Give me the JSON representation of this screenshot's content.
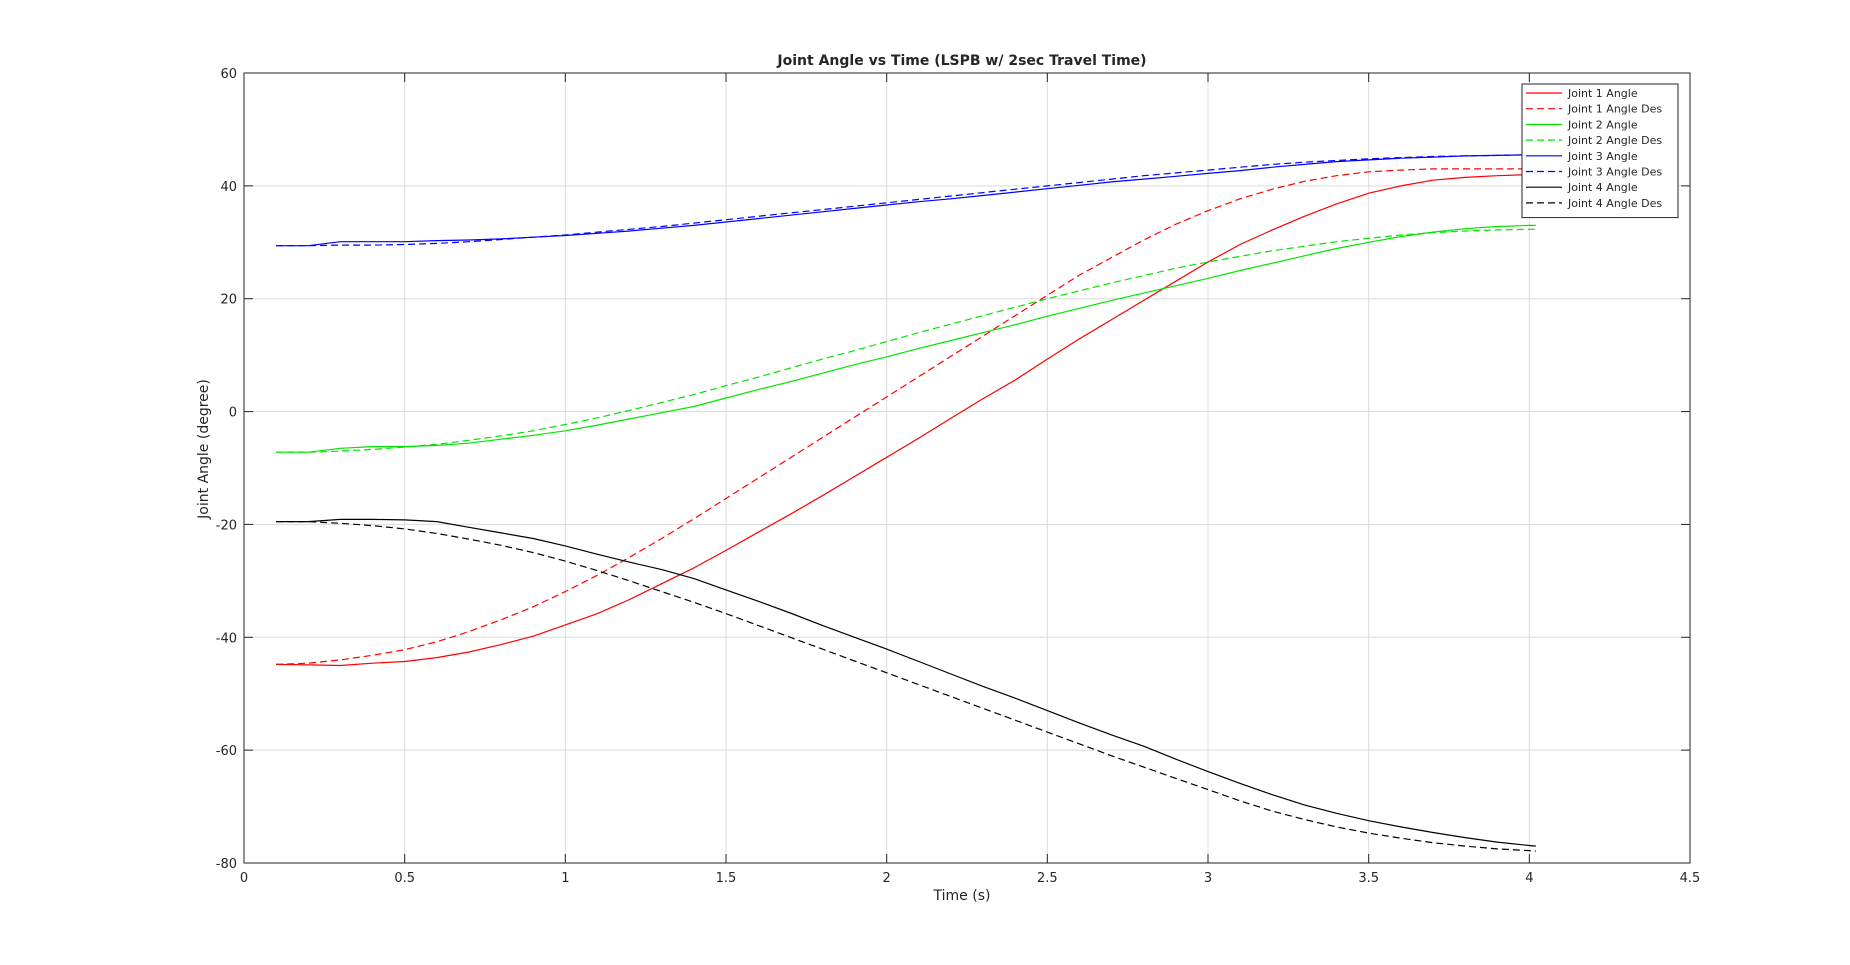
{
  "chart_data": {
    "type": "line",
    "title": "Joint Angle vs Time (LSPB w/ 2sec Travel Time)",
    "xlabel": "Time (s)",
    "ylabel": "Joint Angle (degree)",
    "xlim": [
      0,
      4.5
    ],
    "ylim": [
      -80,
      60
    ],
    "xticks": [
      0,
      0.5,
      1,
      1.5,
      2,
      2.5,
      3,
      3.5,
      4,
      4.5
    ],
    "xtick_labels": [
      "0",
      "0.5",
      "1",
      "1.5",
      "2",
      "2.5",
      "3",
      "3.5",
      "4",
      "4.5"
    ],
    "yticks": [
      -80,
      -60,
      -40,
      -20,
      0,
      20,
      40,
      60
    ],
    "ytick_labels": [
      "-80",
      "-60",
      "-40",
      "-20",
      "0",
      "20",
      "40",
      "60"
    ],
    "grid": true,
    "legend_position": "top-right",
    "series": [
      {
        "name": "Joint 1 Angle",
        "color": "#ff0000",
        "dash": "solid",
        "x": [
          0.1,
          0.2,
          0.3,
          0.4,
          0.5,
          0.6,
          0.7,
          0.8,
          0.9,
          1.0,
          1.1,
          1.2,
          1.3,
          1.4,
          1.5,
          1.6,
          1.7,
          1.8,
          1.9,
          2.0,
          2.1,
          2.2,
          2.3,
          2.4,
          2.5,
          2.6,
          2.7,
          2.8,
          2.9,
          3.0,
          3.1,
          3.2,
          3.3,
          3.4,
          3.5,
          3.6,
          3.7,
          3.8,
          3.9,
          4.0,
          4.02
        ],
        "y": [
          -44.8,
          -44.9,
          -45.0,
          -44.6,
          -44.3,
          -43.6,
          -42.6,
          -41.3,
          -39.8,
          -37.8,
          -35.8,
          -33.3,
          -30.5,
          -27.7,
          -24.6,
          -21.4,
          -18.2,
          -14.9,
          -11.5,
          -8.1,
          -4.7,
          -1.2,
          2.3,
          5.6,
          9.3,
          12.9,
          16.3,
          19.7,
          23.1,
          26.5,
          29.6,
          32.2,
          34.6,
          36.8,
          38.7,
          40.0,
          41.0,
          41.5,
          41.8,
          42.0,
          42.0
        ]
      },
      {
        "name": "Joint 1 Angle Des",
        "color": "#ff0000",
        "dash": "dashed",
        "x": [
          0.1,
          0.2,
          0.3,
          0.4,
          0.5,
          0.6,
          0.7,
          0.8,
          0.9,
          1.0,
          1.1,
          1.2,
          1.3,
          1.4,
          1.5,
          1.6,
          1.7,
          1.8,
          1.9,
          2.0,
          2.1,
          2.2,
          2.3,
          2.4,
          2.5,
          2.6,
          2.7,
          2.8,
          2.9,
          3.0,
          3.1,
          3.2,
          3.3,
          3.4,
          3.5,
          3.6,
          3.7,
          3.8,
          3.9,
          4.0,
          4.02
        ],
        "y": [
          -44.8,
          -44.6,
          -44.0,
          -43.2,
          -42.2,
          -40.8,
          -39.0,
          -36.9,
          -34.6,
          -31.9,
          -29.0,
          -25.8,
          -22.5,
          -19.0,
          -15.4,
          -11.8,
          -8.2,
          -4.6,
          -1.0,
          2.6,
          6.2,
          9.8,
          13.4,
          17.0,
          20.6,
          24.2,
          27.3,
          30.4,
          33.2,
          35.6,
          37.7,
          39.4,
          40.8,
          41.8,
          42.5,
          42.8,
          43.0,
          43.0,
          43.0,
          43.0,
          43.0
        ]
      },
      {
        "name": "Joint 2 Angle",
        "color": "#00e600",
        "dash": "solid",
        "x": [
          0.1,
          0.2,
          0.3,
          0.4,
          0.5,
          0.6,
          0.7,
          0.8,
          0.9,
          1.0,
          1.1,
          1.2,
          1.3,
          1.4,
          1.5,
          1.6,
          1.7,
          1.8,
          1.9,
          2.0,
          2.1,
          2.2,
          2.3,
          2.4,
          2.5,
          2.6,
          2.7,
          2.8,
          2.9,
          3.0,
          3.1,
          3.2,
          3.3,
          3.4,
          3.5,
          3.6,
          3.7,
          3.8,
          3.9,
          4.0,
          4.02
        ],
        "y": [
          -7.2,
          -7.2,
          -6.5,
          -6.2,
          -6.2,
          -6.0,
          -5.6,
          -4.9,
          -4.2,
          -3.4,
          -2.4,
          -1.3,
          -0.2,
          0.9,
          2.4,
          3.9,
          5.3,
          6.8,
          8.3,
          9.7,
          11.2,
          12.6,
          14.0,
          15.4,
          16.9,
          18.3,
          19.7,
          21.0,
          22.3,
          23.6,
          25.0,
          26.3,
          27.6,
          28.9,
          30.0,
          31.0,
          31.8,
          32.4,
          32.8,
          33.0,
          33.0
        ]
      },
      {
        "name": "Joint 2 Angle Des",
        "color": "#00e600",
        "dash": "dashed",
        "x": [
          0.1,
          0.2,
          0.3,
          0.4,
          0.5,
          0.6,
          0.7,
          0.8,
          0.9,
          1.0,
          1.1,
          1.2,
          1.3,
          1.4,
          1.5,
          1.6,
          1.7,
          1.8,
          1.9,
          2.0,
          2.1,
          2.2,
          2.3,
          2.4,
          2.5,
          2.6,
          2.7,
          2.8,
          2.9,
          3.0,
          3.1,
          3.2,
          3.3,
          3.4,
          3.5,
          3.6,
          3.7,
          3.8,
          3.9,
          4.0,
          4.02
        ],
        "y": [
          -7.2,
          -7.2,
          -7.0,
          -6.7,
          -6.3,
          -5.8,
          -5.1,
          -4.3,
          -3.4,
          -2.3,
          -1.1,
          0.2,
          1.6,
          3.0,
          4.6,
          6.1,
          7.7,
          9.3,
          10.8,
          12.4,
          14.0,
          15.5,
          17.0,
          18.5,
          20.0,
          21.4,
          22.8,
          24.1,
          25.4,
          26.5,
          27.5,
          28.5,
          29.3,
          30.1,
          30.7,
          31.3,
          31.7,
          32.0,
          32.2,
          32.3,
          32.3
        ]
      },
      {
        "name": "Joint 3 Angle",
        "color": "#0000ff",
        "dash": "solid",
        "x": [
          0.1,
          0.2,
          0.3,
          0.4,
          0.5,
          0.6,
          0.7,
          0.8,
          0.9,
          1.0,
          1.1,
          1.2,
          1.3,
          1.4,
          1.5,
          1.6,
          1.7,
          1.8,
          1.9,
          2.0,
          2.1,
          2.2,
          2.3,
          2.4,
          2.5,
          2.6,
          2.7,
          2.8,
          2.9,
          3.0,
          3.1,
          3.2,
          3.3,
          3.4,
          3.5,
          3.6,
          3.7,
          3.8,
          3.9,
          4.0,
          4.02
        ],
        "y": [
          29.4,
          29.4,
          30.1,
          30.1,
          30.1,
          30.3,
          30.4,
          30.6,
          30.9,
          31.2,
          31.6,
          32.0,
          32.5,
          33.0,
          33.6,
          34.2,
          34.8,
          35.4,
          36.0,
          36.6,
          37.2,
          37.7,
          38.3,
          38.9,
          39.5,
          40.1,
          40.7,
          41.2,
          41.7,
          42.2,
          42.7,
          43.3,
          43.8,
          44.3,
          44.6,
          44.9,
          45.1,
          45.3,
          45.4,
          45.5,
          45.5
        ]
      },
      {
        "name": "Joint 3 Angle Des",
        "color": "#0000ff",
        "dash": "dashed",
        "x": [
          0.1,
          0.2,
          0.3,
          0.4,
          0.5,
          0.6,
          0.7,
          0.8,
          0.9,
          1.0,
          1.1,
          1.2,
          1.3,
          1.4,
          1.5,
          1.6,
          1.7,
          1.8,
          1.9,
          2.0,
          2.1,
          2.2,
          2.3,
          2.4,
          2.5,
          2.6,
          2.7,
          2.8,
          2.9,
          3.0,
          3.1,
          3.2,
          3.3,
          3.4,
          3.5,
          3.6,
          3.7,
          3.8,
          3.9,
          4.0,
          4.02
        ],
        "y": [
          29.4,
          29.4,
          29.5,
          29.5,
          29.6,
          29.8,
          30.1,
          30.5,
          30.9,
          31.3,
          31.8,
          32.3,
          32.8,
          33.4,
          34.0,
          34.6,
          35.2,
          35.8,
          36.4,
          37.0,
          37.6,
          38.2,
          38.8,
          39.4,
          40.0,
          40.6,
          41.2,
          41.8,
          42.3,
          42.8,
          43.3,
          43.8,
          44.2,
          44.5,
          44.8,
          45.0,
          45.2,
          45.3,
          45.4,
          45.5,
          45.5
        ]
      },
      {
        "name": "Joint 4 Angle",
        "color": "#000000",
        "dash": "solid",
        "x": [
          0.1,
          0.2,
          0.3,
          0.4,
          0.5,
          0.6,
          0.7,
          0.8,
          0.9,
          1.0,
          1.1,
          1.2,
          1.3,
          1.4,
          1.5,
          1.6,
          1.7,
          1.8,
          1.9,
          2.0,
          2.1,
          2.2,
          2.3,
          2.4,
          2.5,
          2.6,
          2.7,
          2.8,
          2.9,
          3.0,
          3.1,
          3.2,
          3.3,
          3.4,
          3.5,
          3.6,
          3.7,
          3.8,
          3.9,
          4.0,
          4.02
        ],
        "y": [
          -19.5,
          -19.5,
          -19.1,
          -19.1,
          -19.2,
          -19.5,
          -20.5,
          -21.5,
          -22.5,
          -23.8,
          -25.3,
          -26.7,
          -28.0,
          -29.6,
          -31.6,
          -33.6,
          -35.7,
          -37.9,
          -40.0,
          -42.1,
          -44.3,
          -46.5,
          -48.7,
          -50.8,
          -53.0,
          -55.2,
          -57.3,
          -59.3,
          -61.6,
          -63.8,
          -65.9,
          -67.9,
          -69.7,
          -71.2,
          -72.5,
          -73.6,
          -74.6,
          -75.5,
          -76.3,
          -76.9,
          -77.0
        ]
      },
      {
        "name": "Joint 4 Angle Des",
        "color": "#000000",
        "dash": "dashed",
        "x": [
          0.1,
          0.2,
          0.3,
          0.4,
          0.5,
          0.6,
          0.7,
          0.8,
          0.9,
          1.0,
          1.1,
          1.2,
          1.3,
          1.4,
          1.5,
          1.6,
          1.7,
          1.8,
          1.9,
          2.0,
          2.1,
          2.2,
          2.3,
          2.4,
          2.5,
          2.6,
          2.7,
          2.8,
          2.9,
          3.0,
          3.1,
          3.2,
          3.3,
          3.4,
          3.5,
          3.6,
          3.7,
          3.8,
          3.9,
          4.0,
          4.02
        ],
        "y": [
          -19.5,
          -19.5,
          -19.8,
          -20.2,
          -20.8,
          -21.6,
          -22.6,
          -23.7,
          -25.0,
          -26.5,
          -28.2,
          -30.0,
          -31.9,
          -33.8,
          -35.8,
          -37.9,
          -40.0,
          -42.1,
          -44.2,
          -46.3,
          -48.4,
          -50.5,
          -52.6,
          -54.7,
          -56.8,
          -58.9,
          -61.0,
          -63.0,
          -65.0,
          -67.0,
          -69.0,
          -70.8,
          -72.3,
          -73.6,
          -74.7,
          -75.6,
          -76.4,
          -77.0,
          -77.5,
          -77.8,
          -77.9
        ]
      }
    ]
  }
}
